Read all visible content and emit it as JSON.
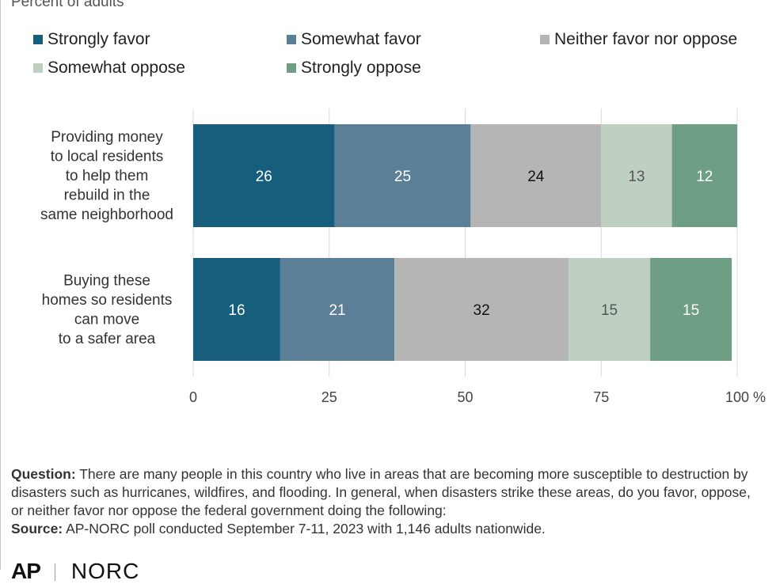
{
  "subtitle": "Percent of adults",
  "legend": [
    {
      "label": "Strongly favor",
      "color": "#175e7c"
    },
    {
      "label": "Somewhat favor",
      "color": "#5b7f96"
    },
    {
      "label": "Neither favor nor oppose",
      "color": "#b5b5b5"
    },
    {
      "label": "Somewhat oppose",
      "color": "#bfd0c3"
    },
    {
      "label": "Strongly oppose",
      "color": "#6e9f85"
    }
  ],
  "chart_data": {
    "type": "bar",
    "orientation": "horizontal",
    "stacked": true,
    "categories": [
      "Providing money to local residents to help them rebuild in the same neighborhood",
      "Buying these homes so residents can move to a safer area"
    ],
    "category_lines": [
      [
        "Providing money",
        "to local residents",
        "to help them",
        "rebuild in the",
        "same neighborhood"
      ],
      [
        "Buying these",
        "homes so residents",
        "can move",
        "to a safer area"
      ]
    ],
    "series": [
      {
        "name": "Strongly favor",
        "values": [
          26,
          16
        ],
        "color": "#175e7c",
        "label_color": "#ffffff"
      },
      {
        "name": "Somewhat favor",
        "values": [
          25,
          21
        ],
        "color": "#5b7f96",
        "label_color": "#ffffff"
      },
      {
        "name": "Neither favor nor oppose",
        "values": [
          24,
          32
        ],
        "color": "#b5b5b5",
        "label_color": "#111111"
      },
      {
        "name": "Somewhat oppose",
        "values": [
          13,
          15
        ],
        "color": "#bfd0c3",
        "label_color": "#555555"
      },
      {
        "name": "Strongly oppose",
        "values": [
          12,
          15
        ],
        "color": "#6e9f85",
        "label_color": "#ffffff"
      }
    ],
    "xlim": [
      0,
      100
    ],
    "xticks": [
      0,
      25,
      50,
      75,
      100
    ],
    "x_unit": "%",
    "grid": true,
    "legend_position": "top"
  },
  "note": {
    "question_label": "Question:",
    "question_text": "There are many people in this country who live in areas that are becoming more susceptible to destruction by disasters such as hurricanes, wildfires, and flooding. In general, when disasters strike these areas, do you favor, oppose, or neither favor nor oppose the federal government doing the following:",
    "source_label": "Source:",
    "source_text": "AP-NORC poll conducted September 7-11, 2023 with 1,146 adults nationwide."
  },
  "logos": {
    "ap": "AP",
    "norc": "NORC"
  }
}
